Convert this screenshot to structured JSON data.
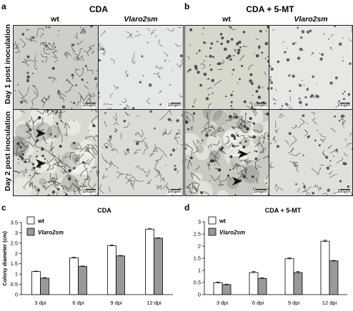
{
  "panels": {
    "a": {
      "letter": "a",
      "title": "CDA"
    },
    "b": {
      "letter": "b",
      "title": "CDA + 5-MT"
    },
    "c": {
      "letter": "c"
    },
    "d": {
      "letter": "d"
    }
  },
  "columns": {
    "wt": "wt",
    "mutant": "Vlaro2sm"
  },
  "rows": {
    "day1": "Day 1 post inoculation",
    "day2": "Day 2 post inoculation"
  },
  "scale_bar": "100µm",
  "colors": {
    "wt": "#ffffff",
    "mutant": "#999999",
    "bar_edge": "#000000"
  },
  "chart_data": [
    {
      "type": "bar",
      "title": "CDA",
      "ylabel": "Colony diameter (cm)",
      "categories": [
        "3 dpi",
        "6 dpi",
        "9 dpi",
        "12 dpi"
      ],
      "ylim": [
        0,
        3.5
      ],
      "yticks": [
        0,
        0.5,
        1,
        1.5,
        2,
        2.5,
        3,
        3.5
      ],
      "series": [
        {
          "name": "wt",
          "values": [
            1.12,
            1.78,
            2.38,
            3.18
          ],
          "errors": [
            0.02,
            0.03,
            0.03,
            0.02
          ]
        },
        {
          "name": "Vlaro2sm",
          "values": [
            0.8,
            1.37,
            1.88,
            2.74
          ],
          "errors": [
            0.02,
            0.02,
            0.02,
            0.02
          ]
        }
      ],
      "legend": "top-left"
    },
    {
      "type": "bar",
      "title": "CDA + 5-MT",
      "ylabel": "",
      "categories": [
        "3 dpi",
        "6 dpi",
        "9 dpi",
        "12 dpi"
      ],
      "ylim": [
        0,
        3
      ],
      "yticks": [
        0,
        0.5,
        1,
        1.5,
        2,
        2.5,
        3
      ],
      "series": [
        {
          "name": "wt",
          "values": [
            0.49,
            0.91,
            1.48,
            2.2
          ],
          "errors": [
            0.03,
            0.04,
            0.03,
            0.04
          ]
        },
        {
          "name": "Vlaro2sm",
          "values": [
            0.41,
            0.67,
            0.91,
            1.39
          ],
          "errors": [
            0.02,
            0.02,
            0.04,
            0.02
          ]
        }
      ],
      "legend": "top-left"
    }
  ]
}
